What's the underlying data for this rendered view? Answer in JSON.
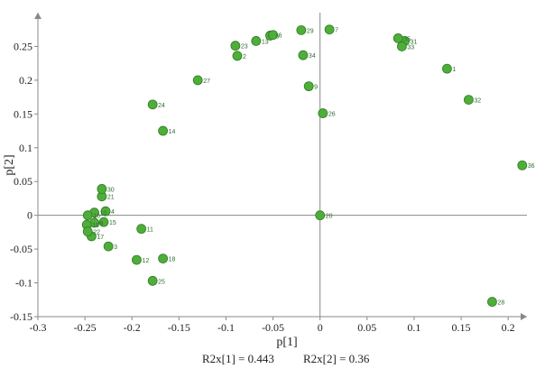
{
  "chart_data": {
    "type": "scatter",
    "xlabel": "p[1]",
    "ylabel": "p[2]",
    "xlim": [
      -0.3,
      0.22
    ],
    "ylim": [
      -0.15,
      0.3
    ],
    "x_ticks": [
      -0.3,
      -0.25,
      -0.2,
      -0.15,
      -0.1,
      -0.05,
      0,
      0.05,
      0.1,
      0.15,
      0.2
    ],
    "x_tick_labels": [
      "-0.3",
      "-0.25",
      "-0.2",
      "-0.15",
      "-0.1",
      "-0.05",
      "0",
      "0.05",
      "0.1",
      "0.15",
      "0.2"
    ],
    "y_ticks": [
      -0.15,
      -0.1,
      -0.05,
      0,
      0.05,
      0.1,
      0.15,
      0.2,
      0.25
    ],
    "y_tick_labels": [
      "-0.15",
      "-0.1",
      "-0.05",
      "0",
      "0.05",
      "0.1",
      "0.15",
      "0.2",
      "0.25"
    ],
    "reference_lines": {
      "x": 0,
      "y": 0
    },
    "grid": false,
    "marker_color": "#4fae3a",
    "marker_edge_color": "#2e7d24",
    "label_color": "#2f6f2f",
    "axis_color": "#888888",
    "points": [
      {
        "label": "1",
        "x": 0.135,
        "y": 0.217
      },
      {
        "label": "2",
        "x": -0.088,
        "y": 0.236
      },
      {
        "label": "3",
        "x": -0.225,
        "y": -0.046
      },
      {
        "label": "4",
        "x": -0.228,
        "y": 0.006
      },
      {
        "label": "5",
        "x": -0.053,
        "y": 0.266
      },
      {
        "label": "6",
        "x": -0.05,
        "y": 0.267
      },
      {
        "label": "7",
        "x": 0.01,
        "y": 0.275
      },
      {
        "label": "8",
        "x": -0.24,
        "y": -0.011
      },
      {
        "label": "9",
        "x": -0.012,
        "y": 0.191
      },
      {
        "label": "10",
        "x": -0.24,
        "y": 0.004
      },
      {
        "label": "11",
        "x": -0.19,
        "y": -0.02
      },
      {
        "label": "12",
        "x": -0.195,
        "y": -0.066
      },
      {
        "label": "13",
        "x": -0.068,
        "y": 0.258
      },
      {
        "label": "14",
        "x": -0.167,
        "y": 0.125
      },
      {
        "label": "15",
        "x": -0.23,
        "y": -0.01
      },
      {
        "label": "16",
        "x": -0.247,
        "y": 0.0
      },
      {
        "label": "17",
        "x": -0.243,
        "y": -0.031
      },
      {
        "label": "18",
        "x": -0.167,
        "y": -0.064
      },
      {
        "label": "19",
        "x": -0.248,
        "y": -0.014
      },
      {
        "label": "20",
        "x": 0.0,
        "y": 0.0
      },
      {
        "label": "21",
        "x": -0.232,
        "y": 0.028
      },
      {
        "label": "22",
        "x": -0.247,
        "y": -0.024
      },
      {
        "label": "23",
        "x": -0.09,
        "y": 0.251
      },
      {
        "label": "24",
        "x": -0.178,
        "y": 0.164
      },
      {
        "label": "25",
        "x": -0.178,
        "y": -0.097
      },
      {
        "label": "26",
        "x": 0.003,
        "y": 0.151
      },
      {
        "label": "27",
        "x": -0.13,
        "y": 0.2
      },
      {
        "label": "28",
        "x": 0.183,
        "y": -0.128
      },
      {
        "label": "29",
        "x": -0.02,
        "y": 0.274
      },
      {
        "label": "30",
        "x": -0.232,
        "y": 0.039
      },
      {
        "label": "31",
        "x": 0.09,
        "y": 0.258
      },
      {
        "label": "32",
        "x": 0.158,
        "y": 0.171
      },
      {
        "label": "33",
        "x": 0.087,
        "y": 0.25
      },
      {
        "label": "34",
        "x": -0.018,
        "y": 0.237
      },
      {
        "label": "35",
        "x": 0.083,
        "y": 0.262
      },
      {
        "label": "36",
        "x": 0.215,
        "y": 0.074
      }
    ]
  },
  "footer": {
    "r2x1": "R2x[1] = 0.443",
    "r2x2": "R2x[2] = 0.36"
  }
}
